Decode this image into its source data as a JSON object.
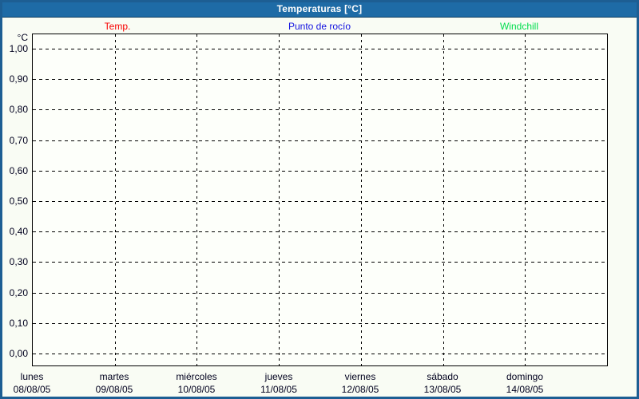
{
  "header": {
    "title": "Temperaturas [°C]"
  },
  "legend": {
    "items": [
      {
        "label": "Temp.",
        "color": "#f80000"
      },
      {
        "label": "Punto de rocío",
        "color": "#1212e0"
      },
      {
        "label": "Windchill",
        "color": "#00dd4d"
      }
    ]
  },
  "colors": {
    "titlebar_bg": "#1e6ba6",
    "frame_border": "#1d5e93",
    "page_bg": "#f9fcf4",
    "plot_bg": "#fdfffa",
    "grid": "#000000",
    "axis_text": "#00001e"
  },
  "chart_data": {
    "type": "line",
    "title": "Temperaturas [°C]",
    "ylabel": "°C",
    "y_unit_label": "°C",
    "ylim": [
      0.0,
      1.0
    ],
    "ytick_step": 0.1,
    "ytick_labels": [
      "1,00",
      "0,90",
      "0,80",
      "0,70",
      "0,60",
      "0,50",
      "0,40",
      "0,30",
      "0,20",
      "0,10",
      "0,00"
    ],
    "grid": true,
    "legend_position": "top",
    "days": [
      {
        "name": "lunes",
        "date": "08/08/05"
      },
      {
        "name": "martes",
        "date": "09/08/05"
      },
      {
        "name": "miércoles",
        "date": "10/08/05"
      },
      {
        "name": "jueves",
        "date": "11/08/05"
      },
      {
        "name": "viernes",
        "date": "12/08/05"
      },
      {
        "name": "sábado",
        "date": "13/08/05"
      },
      {
        "name": "domingo",
        "date": "14/08/05"
      }
    ],
    "series": [
      {
        "name": "Temp.",
        "color": "#f80000",
        "values": []
      },
      {
        "name": "Punto de rocío",
        "color": "#1212e0",
        "values": []
      },
      {
        "name": "Windchill",
        "color": "#00dd4d",
        "values": []
      }
    ],
    "note": "plot area is empty — no data drawn for the displayed week"
  }
}
